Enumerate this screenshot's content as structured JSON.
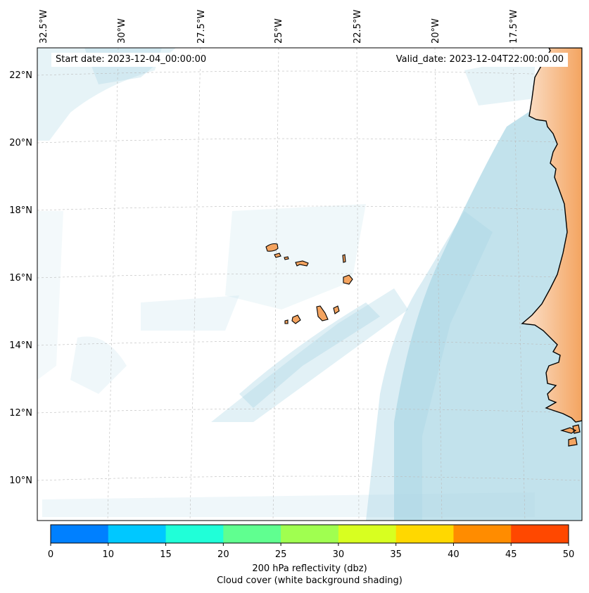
{
  "map": {
    "start_date": "Start date: 2023-12-04_00:00:00",
    "valid_date": "Valid_date: 2023-12-04T22:00:00.00",
    "lon_labels": [
      "32.5°W",
      "30°W",
      "27.5°W",
      "25°W",
      "22.5°W",
      "20°W",
      "17.5°W"
    ],
    "lat_labels": [
      "22°N",
      "20°N",
      "18°N",
      "16°N",
      "14°N",
      "12°N",
      "10°N"
    ],
    "colors": {
      "land": "#f4a460",
      "coastline": "#000000",
      "cloud": "#add8e6",
      "gridline": "#bbbbbb"
    }
  },
  "colorbar": {
    "title": "200 hPa reflectivity (dbz)",
    "subtitle": "Cloud cover (white background shading)",
    "ticks": [
      "0",
      "10",
      "15",
      "20",
      "25",
      "30",
      "35",
      "40",
      "45",
      "50"
    ],
    "colors": [
      "#0080ff",
      "#00c8ff",
      "#20ffd8",
      "#60ff90",
      "#a0ff50",
      "#d8ff20",
      "#ffd800",
      "#ff8c00",
      "#ff4800"
    ]
  }
}
